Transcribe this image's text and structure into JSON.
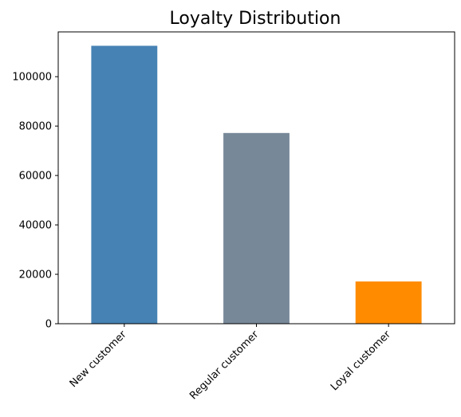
{
  "chart_data": {
    "type": "bar",
    "title": "Loyalty Distribution",
    "xlabel": "",
    "ylabel": "",
    "categories": [
      "New customer",
      "Regular customer",
      "Loyal customer"
    ],
    "values": [
      112500,
      77200,
      17100
    ],
    "colors": [
      "#4682b4",
      "#778899",
      "#ff8c00"
    ],
    "ylim": [
      0,
      118125
    ],
    "yticks": [
      0,
      20000,
      40000,
      60000,
      80000,
      100000
    ],
    "grid": false,
    "legend": "none"
  }
}
